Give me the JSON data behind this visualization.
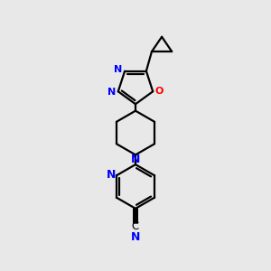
{
  "background_color": "#e8e8e8",
  "bond_color": "#000000",
  "nitrogen_color": "#0000ff",
  "oxygen_color": "#ff0000",
  "carbon_color": "#000000",
  "lw": 1.6,
  "figsize": [
    3.0,
    3.0
  ],
  "dpi": 100,
  "xlim": [
    0,
    1
  ],
  "ylim": [
    0,
    1
  ]
}
